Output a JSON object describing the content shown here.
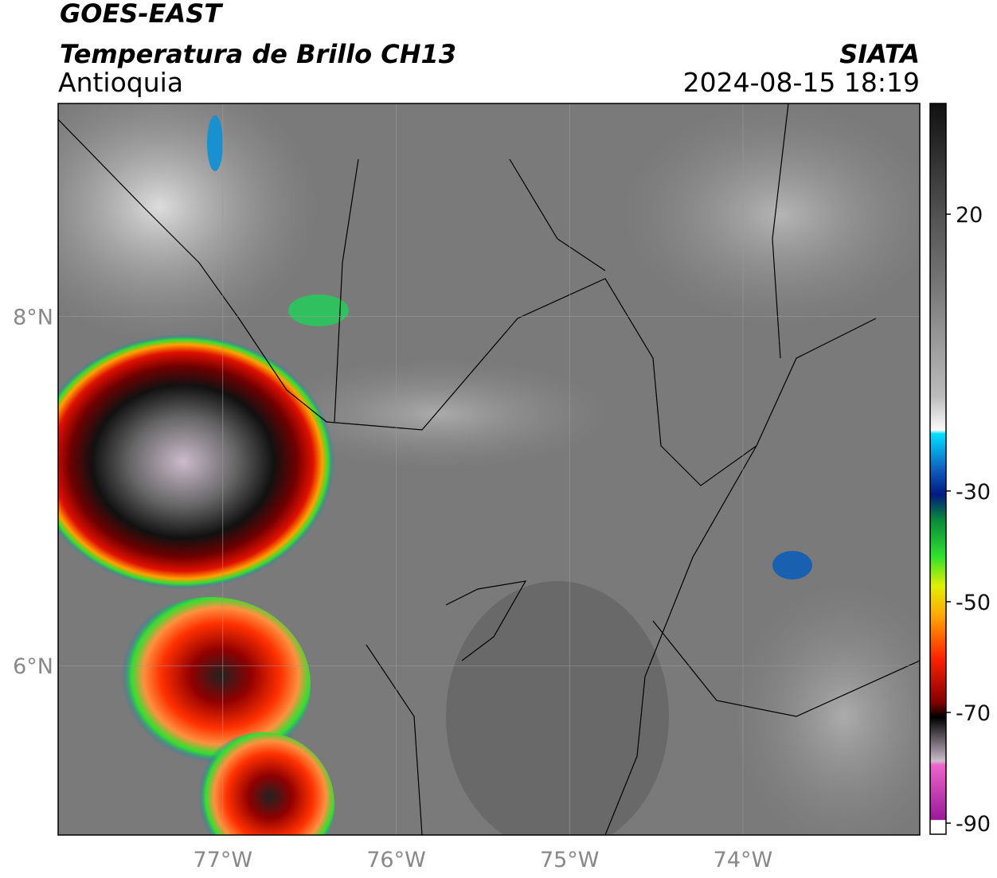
{
  "header": {
    "satellite": "GOES-EAST",
    "product": "Temperatura de Brillo CH13",
    "region": "Antioquia",
    "source": "SIATA",
    "datetime": "2024-08-15 18:19"
  },
  "map": {
    "lonlim": [
      -77.95,
      -72.98
    ],
    "latlim": [
      5.03,
      9.22
    ],
    "lonticks": [
      {
        "value": -77,
        "label": "77°W"
      },
      {
        "value": -76,
        "label": "76°W"
      },
      {
        "value": -75,
        "label": "75°W"
      },
      {
        "value": -74,
        "label": "74°W"
      }
    ],
    "latticks": [
      {
        "value": 8,
        "label": "8°N"
      },
      {
        "value": 6,
        "label": "6°N"
      }
    ],
    "grid": true
  },
  "colorbar": {
    "lim": [
      -92,
      40
    ],
    "ticks": [
      20,
      -30,
      -50,
      -70,
      -90
    ]
  }
}
